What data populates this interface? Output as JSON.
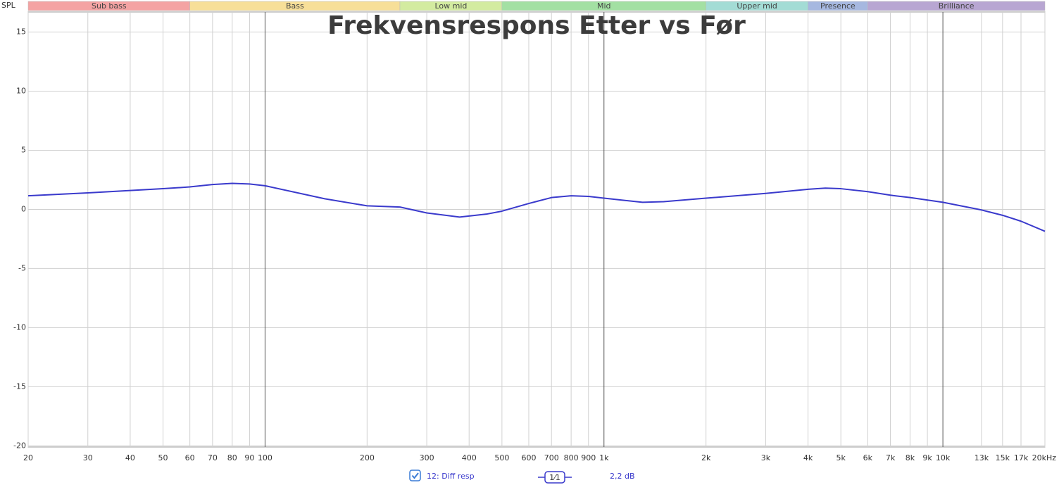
{
  "chart_data": {
    "type": "line",
    "title": "Frekvensrespons Etter vs Før",
    "y_axis_label": "SPL",
    "bands": [
      {
        "name": "Sub bass",
        "from": 20,
        "to": 60,
        "color": "#f4a3a3"
      },
      {
        "name": "Bass",
        "from": 60,
        "to": 250,
        "color": "#f7df98"
      },
      {
        "name": "Low mid",
        "from": 250,
        "to": 500,
        "color": "#d3eba0"
      },
      {
        "name": "Mid",
        "from": 500,
        "to": 2000,
        "color": "#a3e0a3"
      },
      {
        "name": "Upper mid",
        "from": 2000,
        "to": 4000,
        "color": "#a3dcd5"
      },
      {
        "name": "Presence",
        "from": 4000,
        "to": 6000,
        "color": "#a6b8e0"
      },
      {
        "name": "Brilliance",
        "from": 6000,
        "to": 20000,
        "color": "#b8a6d2"
      }
    ],
    "x": [
      20,
      30,
      40,
      50,
      60,
      70,
      80,
      90,
      100,
      150,
      200,
      250,
      300,
      375,
      450,
      500,
      600,
      700,
      800,
      900,
      1000,
      1300,
      1500,
      2000,
      3000,
      4000,
      4500,
      5000,
      6000,
      7000,
      8000,
      10000,
      13000,
      15000,
      17000,
      20000
    ],
    "series": [
      {
        "name": "12: Diff resp",
        "color": "#3a3acc",
        "values": [
          1.15,
          1.4,
          1.6,
          1.75,
          1.9,
          2.1,
          2.2,
          2.15,
          2.0,
          0.9,
          0.3,
          0.2,
          -0.3,
          -0.65,
          -0.4,
          -0.15,
          0.5,
          1.0,
          1.15,
          1.1,
          0.95,
          0.6,
          0.65,
          0.95,
          1.35,
          1.7,
          1.8,
          1.75,
          1.5,
          1.2,
          1.0,
          0.6,
          -0.05,
          -0.5,
          -1.0,
          -1.85
        ]
      }
    ],
    "log_x": true,
    "grid": true,
    "xlim": [
      20,
      20000
    ],
    "ylim": [
      -20.1,
      16.7
    ],
    "yticks": [
      15,
      10,
      5,
      0,
      -5,
      -10,
      -15,
      -20
    ],
    "xticks": [
      20,
      30,
      40,
      50,
      60,
      70,
      80,
      90,
      100,
      200,
      300,
      400,
      500,
      600,
      700,
      800,
      900,
      {
        "value": 1000,
        "label": "1k"
      },
      {
        "value": 2000,
        "label": "2k"
      },
      {
        "value": 3000,
        "label": "3k"
      },
      {
        "value": 4000,
        "label": "4k"
      },
      {
        "value": 5000,
        "label": "5k"
      },
      {
        "value": 6000,
        "label": "6k"
      },
      {
        "value": 7000,
        "label": "7k"
      },
      {
        "value": 8000,
        "label": "8k"
      },
      {
        "value": 9000,
        "label": "9k"
      },
      {
        "value": 10000,
        "label": "10k"
      },
      {
        "value": 13000,
        "label": "13k"
      },
      {
        "value": 15000,
        "label": "15k"
      },
      {
        "value": 17000,
        "label": "17k"
      },
      {
        "value": 20000,
        "label": "20kHz"
      }
    ],
    "smoothing": "1⁄1",
    "legend_value": "2,2 dB"
  }
}
